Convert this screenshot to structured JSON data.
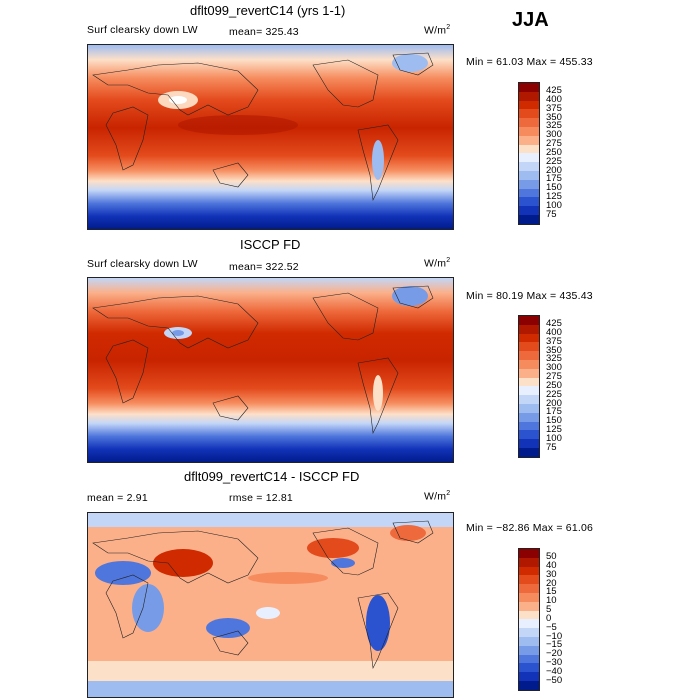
{
  "season": "JJA",
  "panels": [
    {
      "title": "dflt099_revertC14 (yrs 1-1)",
      "var_label": "Surf clearsky down LW",
      "stat": "mean=  325.43",
      "units": "W/m",
      "units_sup": "2",
      "minmax": "Min =  61.03 Max = 455.33",
      "levels": [
        "425",
        "400",
        "375",
        "350",
        "325",
        "300",
        "275",
        "250",
        "225",
        "200",
        "175",
        "150",
        "125",
        "100",
        "75"
      ],
      "colors": [
        "#8b0000",
        "#b01800",
        "#d02a00",
        "#e34a1c",
        "#ee6a3c",
        "#f68c5e",
        "#fbb08a",
        "#fde0c8",
        "#e8f0ff",
        "#c3d6f7",
        "#9ebcf0",
        "#779be6",
        "#4f76dc",
        "#2b53cf",
        "#1233b8",
        "#001b8c"
      ]
    },
    {
      "title": "ISCCP FD",
      "var_label": "Surf clearsky down LW",
      "stat": "mean= 322.52",
      "units": "W/m",
      "units_sup": "2",
      "minmax": "Min =  80.19 Max = 435.43",
      "levels": [
        "425",
        "400",
        "375",
        "350",
        "325",
        "300",
        "275",
        "250",
        "225",
        "200",
        "175",
        "150",
        "125",
        "100",
        "75"
      ],
      "colors": [
        "#8b0000",
        "#b01800",
        "#d02a00",
        "#e34a1c",
        "#ee6a3c",
        "#f68c5e",
        "#fbb08a",
        "#fde0c8",
        "#e8f0ff",
        "#c3d6f7",
        "#9ebcf0",
        "#779be6",
        "#4f76dc",
        "#2b53cf",
        "#1233b8",
        "#001b8c"
      ]
    },
    {
      "title": "dflt099_revertC14 - ISCCP FD",
      "var_label": "mean =    2.91",
      "stat": "rmse =   12.81",
      "units": "W/m",
      "units_sup": "2",
      "minmax": "Min = −82.86 Max =   61.06",
      "levels": [
        "50",
        "40",
        "30",
        "20",
        "15",
        "10",
        "5",
        "0",
        "−5",
        "−10",
        "−15",
        "−20",
        "−30",
        "−40",
        "−50"
      ],
      "colors": [
        "#8b0000",
        "#b01800",
        "#d02a00",
        "#e34a1c",
        "#ee6a3c",
        "#f68c5e",
        "#fbb08a",
        "#fde0c8",
        "#e8f0ff",
        "#c3d6f7",
        "#9ebcf0",
        "#779be6",
        "#4f76dc",
        "#2b53cf",
        "#1233b8",
        "#001b8c"
      ]
    }
  ]
}
